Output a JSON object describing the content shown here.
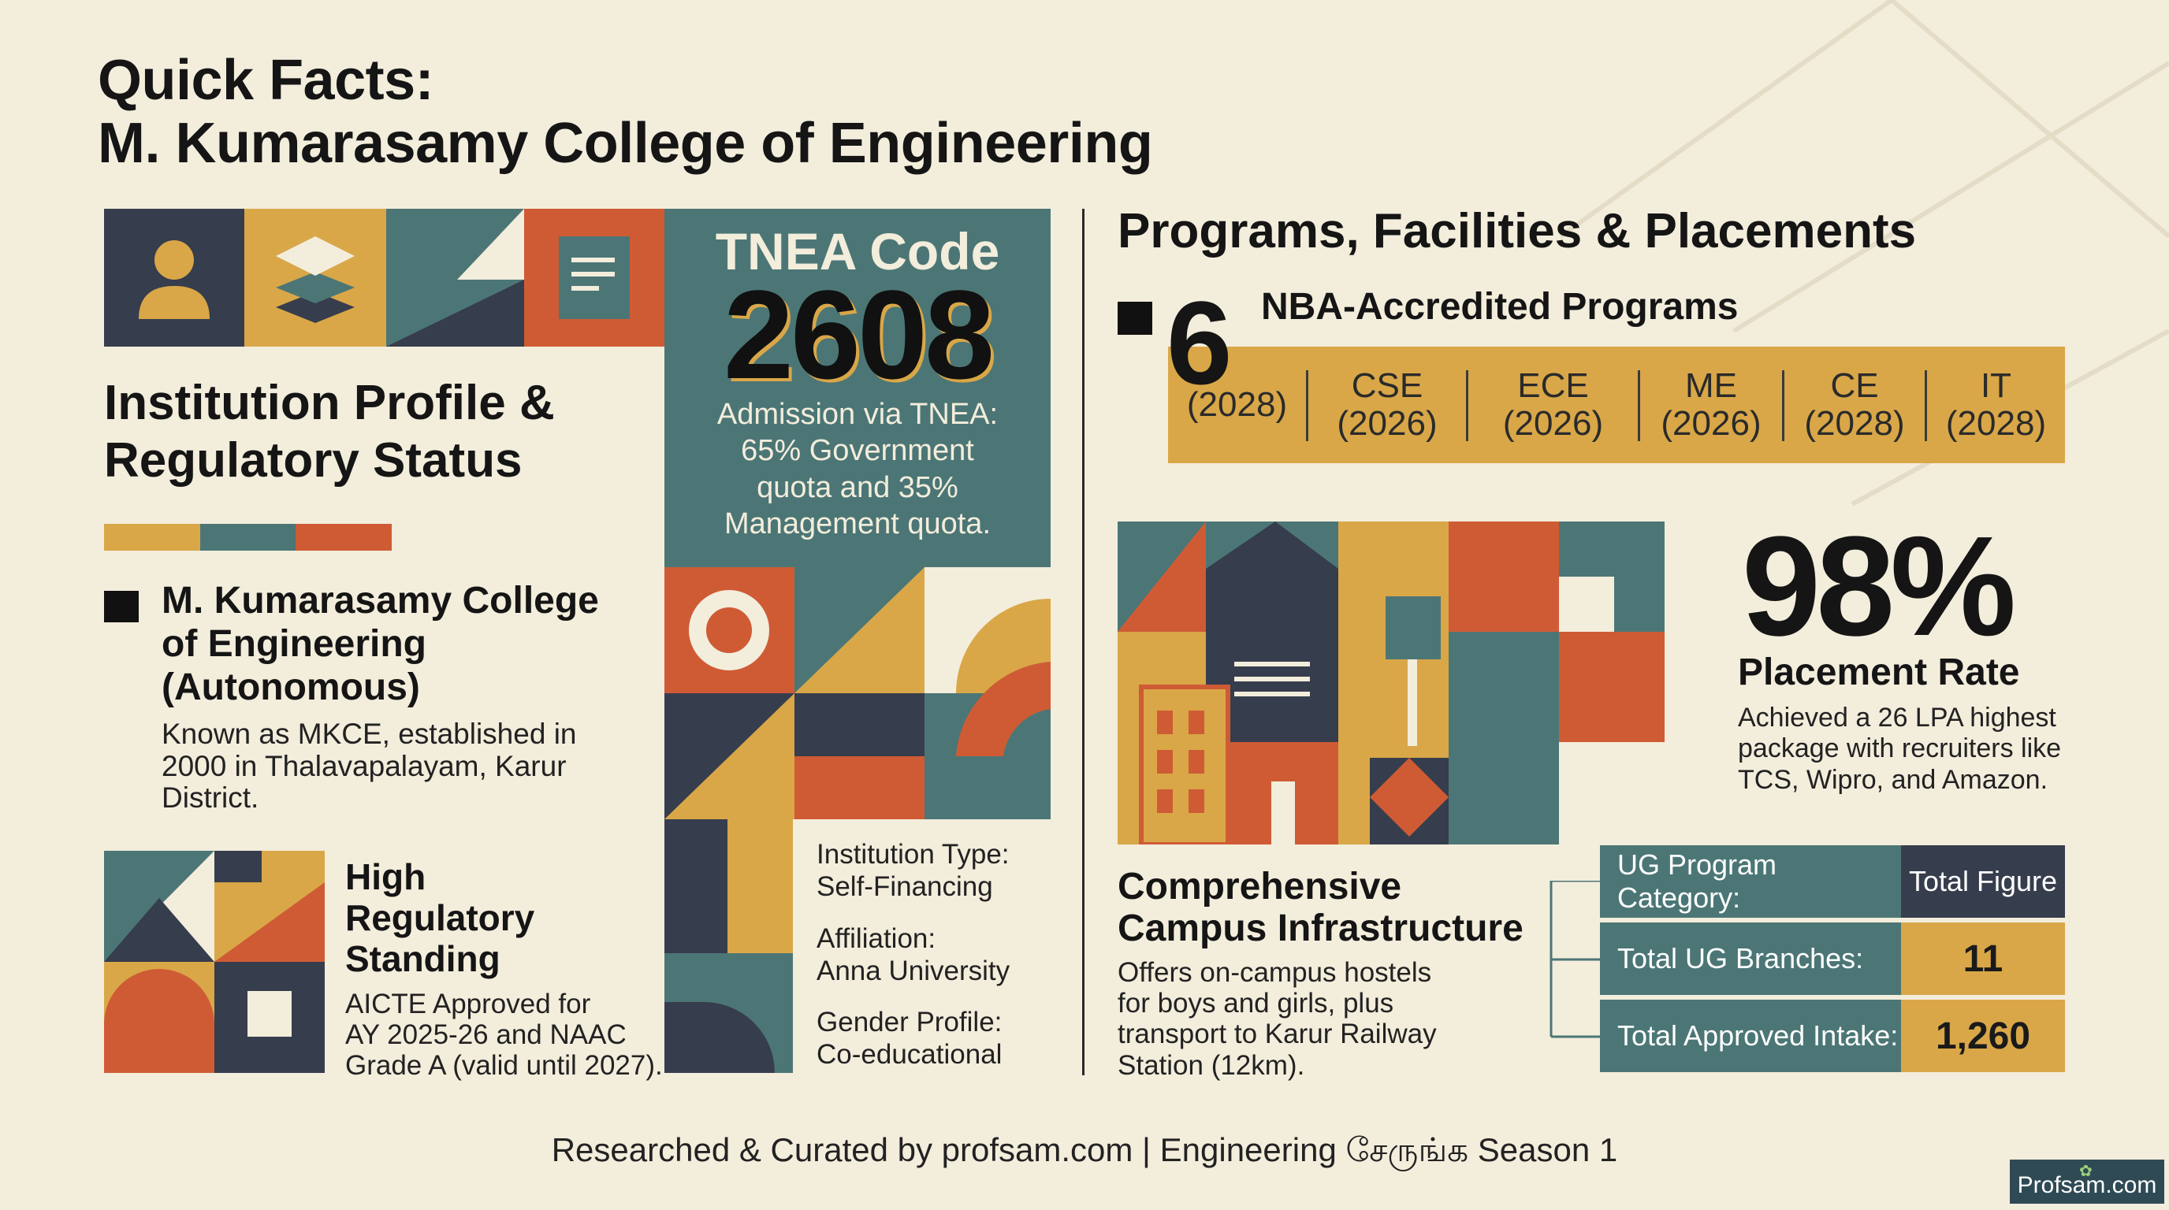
{
  "title": {
    "line1": "Quick Facts:",
    "line2": "M. Kumarasamy College of Engineering"
  },
  "left": {
    "section_heading_line1": "Institution Profile &",
    "section_heading_line2": "Regulatory Status",
    "college_name_line1": "M. Kumarasamy College",
    "college_name_line2": "of Engineering",
    "college_name_line3": "(Autonomous)",
    "college_desc_line1": "Known as MKCE, established in",
    "college_desc_line2": "2000 in Thalavapalayam, Karur",
    "college_desc_line3": "District.",
    "regulatory_heading_line1": "High",
    "regulatory_heading_line2": "Regulatory",
    "regulatory_heading_line3": "Standing",
    "regulatory_desc_line1": "AICTE Approved for",
    "regulatory_desc_line2": "AY 2025-26 and NAAC",
    "regulatory_desc_line3": "Grade A (valid until 2027)."
  },
  "tnea": {
    "label": "TNEA Code",
    "code": "2608",
    "desc_line1": "Admission via TNEA:",
    "desc_line2": "65% Government",
    "desc_line3": "quota and 35%",
    "desc_line4": "Management quota."
  },
  "info": {
    "type_label": "Institution Type:",
    "type_value": "Self-Financing",
    "affiliation_label": "Affiliation:",
    "affiliation_value": "Anna University",
    "gender_label": "Gender Profile:",
    "gender_value": "Co-educational"
  },
  "right": {
    "section_heading": "Programs, Facilities & Placements",
    "nba_count": "6",
    "nba_label": "NBA-Accredited Programs",
    "programs": [
      {
        "name": "",
        "year": "(2028)"
      },
      {
        "name": "CSE",
        "year": "(2026)"
      },
      {
        "name": "ECE",
        "year": "(2026)"
      },
      {
        "name": "ME",
        "year": "(2026)"
      },
      {
        "name": "CE",
        "year": "(2028)"
      },
      {
        "name": "IT",
        "year": "(2028)"
      }
    ],
    "placement_rate": "98%",
    "placement_label": "Placement Rate",
    "placement_desc_line1": "Achieved a 26 LPA highest",
    "placement_desc_line2": "package with recruiters like",
    "placement_desc_line3": "TCS, Wipro, and Amazon.",
    "infra_heading_line1": "Comprehensive",
    "infra_heading_line2": "Campus Infrastructure",
    "infra_desc_line1": "Offers on-campus hostels",
    "infra_desc_line2": "for boys and girls, plus",
    "infra_desc_line3": "transport to Karur Railway",
    "infra_desc_line4": "Station (12km).",
    "table": {
      "header_left": "UG Program Category:",
      "header_right": "Total Figure",
      "rows": [
        {
          "label": "Total UG Branches:",
          "value": "11"
        },
        {
          "label": "Total Approved Intake:",
          "value": "1,260"
        }
      ]
    }
  },
  "footer": {
    "credit": "Researched & Curated by profsam.com | Engineering சேருங்க Season 1",
    "badge": "Profsam.com"
  },
  "colors": {
    "background": "#f3eddc",
    "teal": "#4c7676",
    "mustard": "#d9a748",
    "orange": "#cf5b35",
    "navy": "#363d4d",
    "cream": "#f3eddc"
  },
  "icons": [
    "person-icon",
    "layers-icon",
    "document-icon",
    "building-icon",
    "circle-ring-icon"
  ]
}
